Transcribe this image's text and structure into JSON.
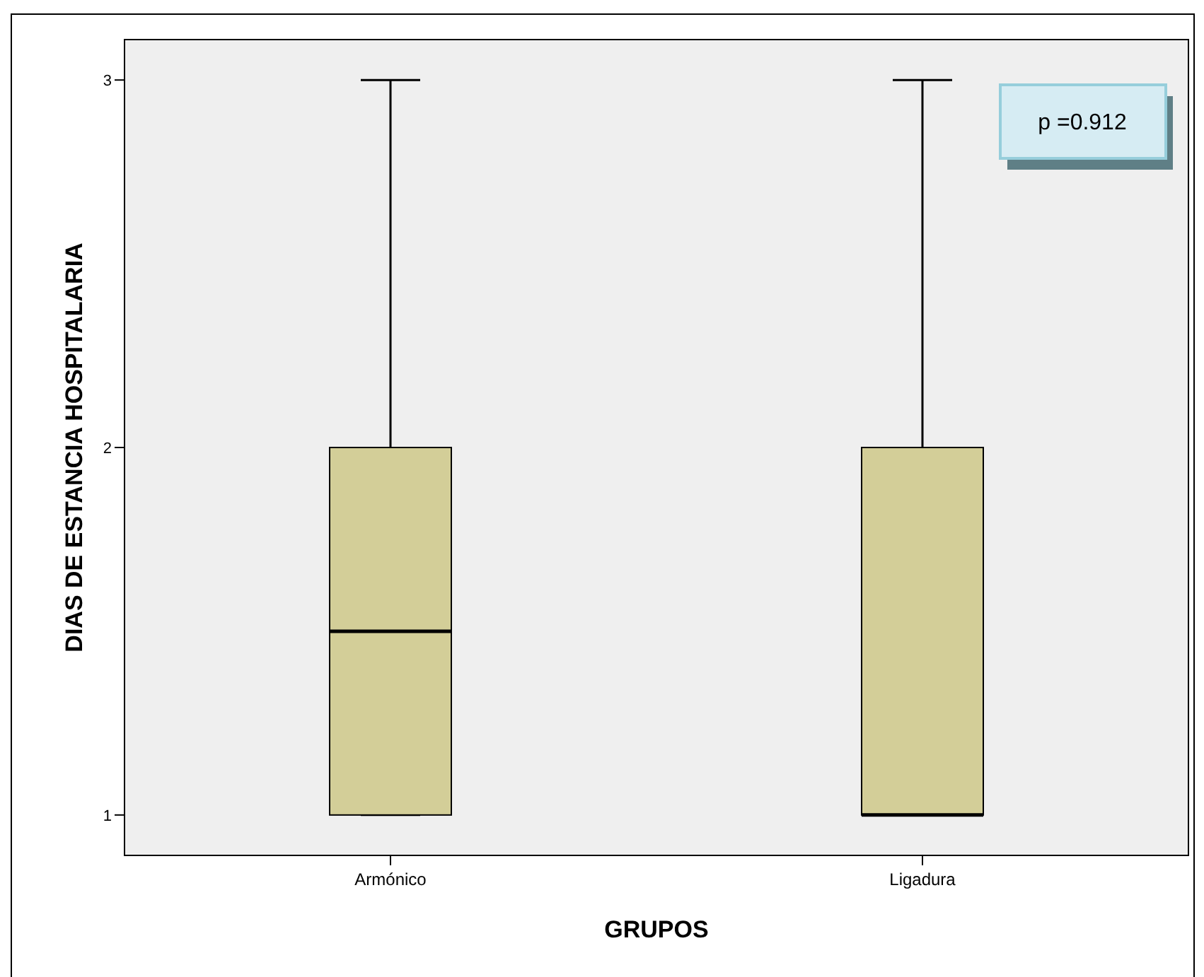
{
  "chart_data": {
    "type": "box",
    "xlabel": "GRUPOS",
    "ylabel": "DIAS DE ESTANCIA HOSPITALARIA",
    "categories": [
      "Armónico",
      "Ligadura"
    ],
    "color": "#d3ce98",
    "boxes": [
      {
        "low": 1,
        "q1": 1,
        "median": 1.5,
        "q3": 2,
        "high": 3
      },
      {
        "low": 1,
        "q1": 1,
        "median": 1,
        "q3": 2,
        "high": 3
      }
    ],
    "ylim": [
      0.89,
      3.11
    ],
    "yticks": [
      1,
      2,
      3
    ],
    "grid": false,
    "annotations": [
      "p =0.912"
    ]
  }
}
